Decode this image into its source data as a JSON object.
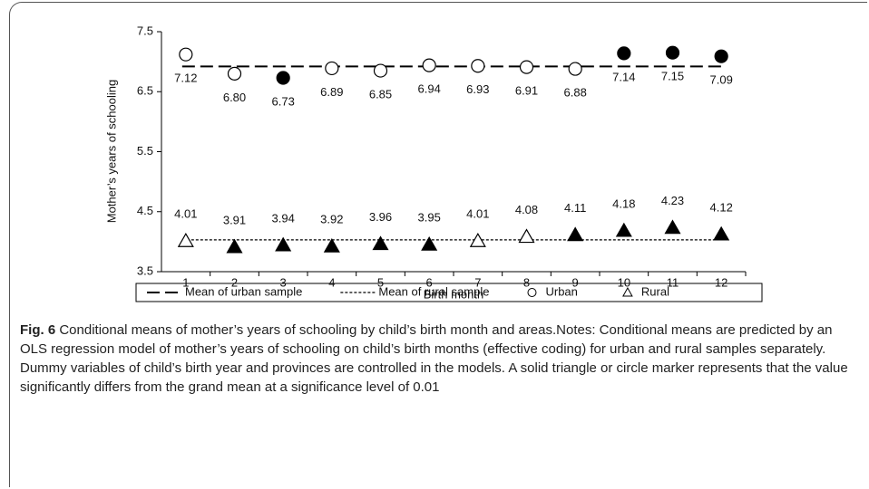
{
  "chart_data": {
    "type": "scatter",
    "xlabel": "Birth month",
    "ylabel": "Mother’s years of schooling",
    "categories": [
      "1",
      "2",
      "3",
      "4",
      "5",
      "6",
      "7",
      "8",
      "9",
      "10",
      "11",
      "12"
    ],
    "ylim": [
      3.5,
      7.5
    ],
    "yticks": [
      3.5,
      4.5,
      5.5,
      6.5,
      7.5
    ],
    "means": [
      {
        "name": "Mean of urban sample",
        "value": 6.92,
        "dash": "14,6",
        "color": "#000000"
      },
      {
        "name": "Mean of rural sample",
        "value": 4.03,
        "dash": "3,2",
        "color": "#000000"
      }
    ],
    "series": [
      {
        "name": "Urban",
        "marker": "circle",
        "color": "#000000",
        "label_position": "below",
        "values": [
          7.12,
          6.8,
          6.73,
          6.89,
          6.85,
          6.94,
          6.93,
          6.91,
          6.88,
          7.14,
          7.15,
          7.09
        ],
        "value_labels": [
          "7.12",
          "6.80",
          "6.73",
          "6.89",
          "6.85",
          "6.94",
          "6.93",
          "6.91",
          "6.88",
          "7.14",
          "7.15",
          "7.09"
        ],
        "filled": [
          false,
          false,
          true,
          false,
          false,
          false,
          false,
          false,
          false,
          true,
          true,
          true
        ]
      },
      {
        "name": "Rural",
        "marker": "triangle",
        "color": "#000000",
        "label_position": "above",
        "values": [
          4.01,
          3.91,
          3.94,
          3.92,
          3.96,
          3.95,
          4.01,
          4.08,
          4.11,
          4.18,
          4.23,
          4.12
        ],
        "value_labels": [
          "4.01",
          "3.91",
          "3.94",
          "3.92",
          "3.96",
          "3.95",
          "4.01",
          "4.08",
          "4.11",
          "4.18",
          "4.23",
          "4.12"
        ],
        "filled": [
          false,
          true,
          true,
          true,
          true,
          true,
          false,
          false,
          true,
          true,
          true,
          true
        ]
      }
    ]
  },
  "caption": {
    "label": "Fig. 6",
    "text": "Conditional means of mother’s years of schooling by child’s birth month and areas.Notes: Conditional means are predicted by an OLS regression model of mother’s years of schooling on child’s birth months (effective coding) for urban and rural samples separately. Dummy variables of child’s birth year and provinces are controlled in the models. A solid triangle or circle marker represents that the value significantly differs from the grand mean at a significance level of 0.01"
  }
}
